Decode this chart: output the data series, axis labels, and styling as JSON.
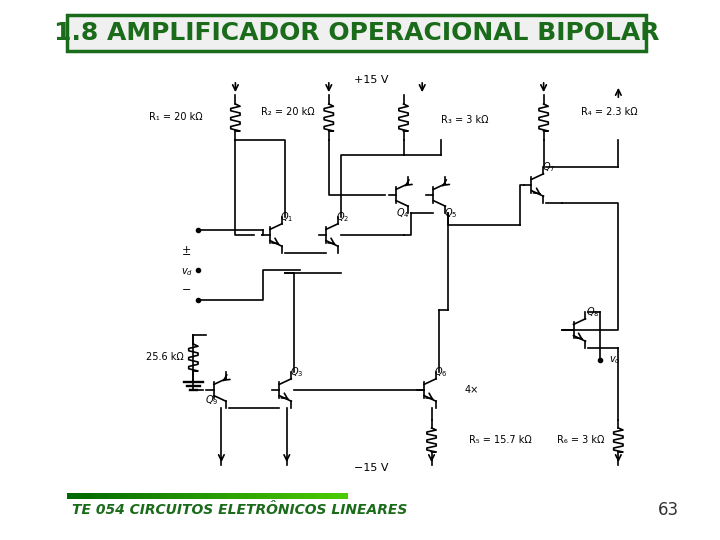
{
  "title": "1.8 AMPLIFICADOR OPERACIONAL BIPOLAR",
  "footer_text": "TE 054 CIRCUITOS ELETRÔNICOS LINEARES",
  "page_number": "63",
  "title_color": "#1a6b1a",
  "title_bg": "#f0f0f0",
  "title_border_color": "#1a6b1a",
  "footer_color": "#1a6b1a",
  "page_color": "#333333",
  "bg_color": "#ffffff",
  "title_fontsize": 18,
  "footer_fontsize": 10,
  "page_fontsize": 12,
  "circuit": {
    "vcc": "+15 V",
    "vee": "-15 V",
    "R1": "R₁ = 20 kΩ",
    "R2": "R₂ = 20 kΩ",
    "R3": "R₃ = 3 kΩ",
    "R4": "R₄ = 2.3 kΩ",
    "R5": "R₅ = 15.7 kΩ",
    "R6": "R₆ = 3 kΩ",
    "Rbias": "25.6 kΩ"
  }
}
